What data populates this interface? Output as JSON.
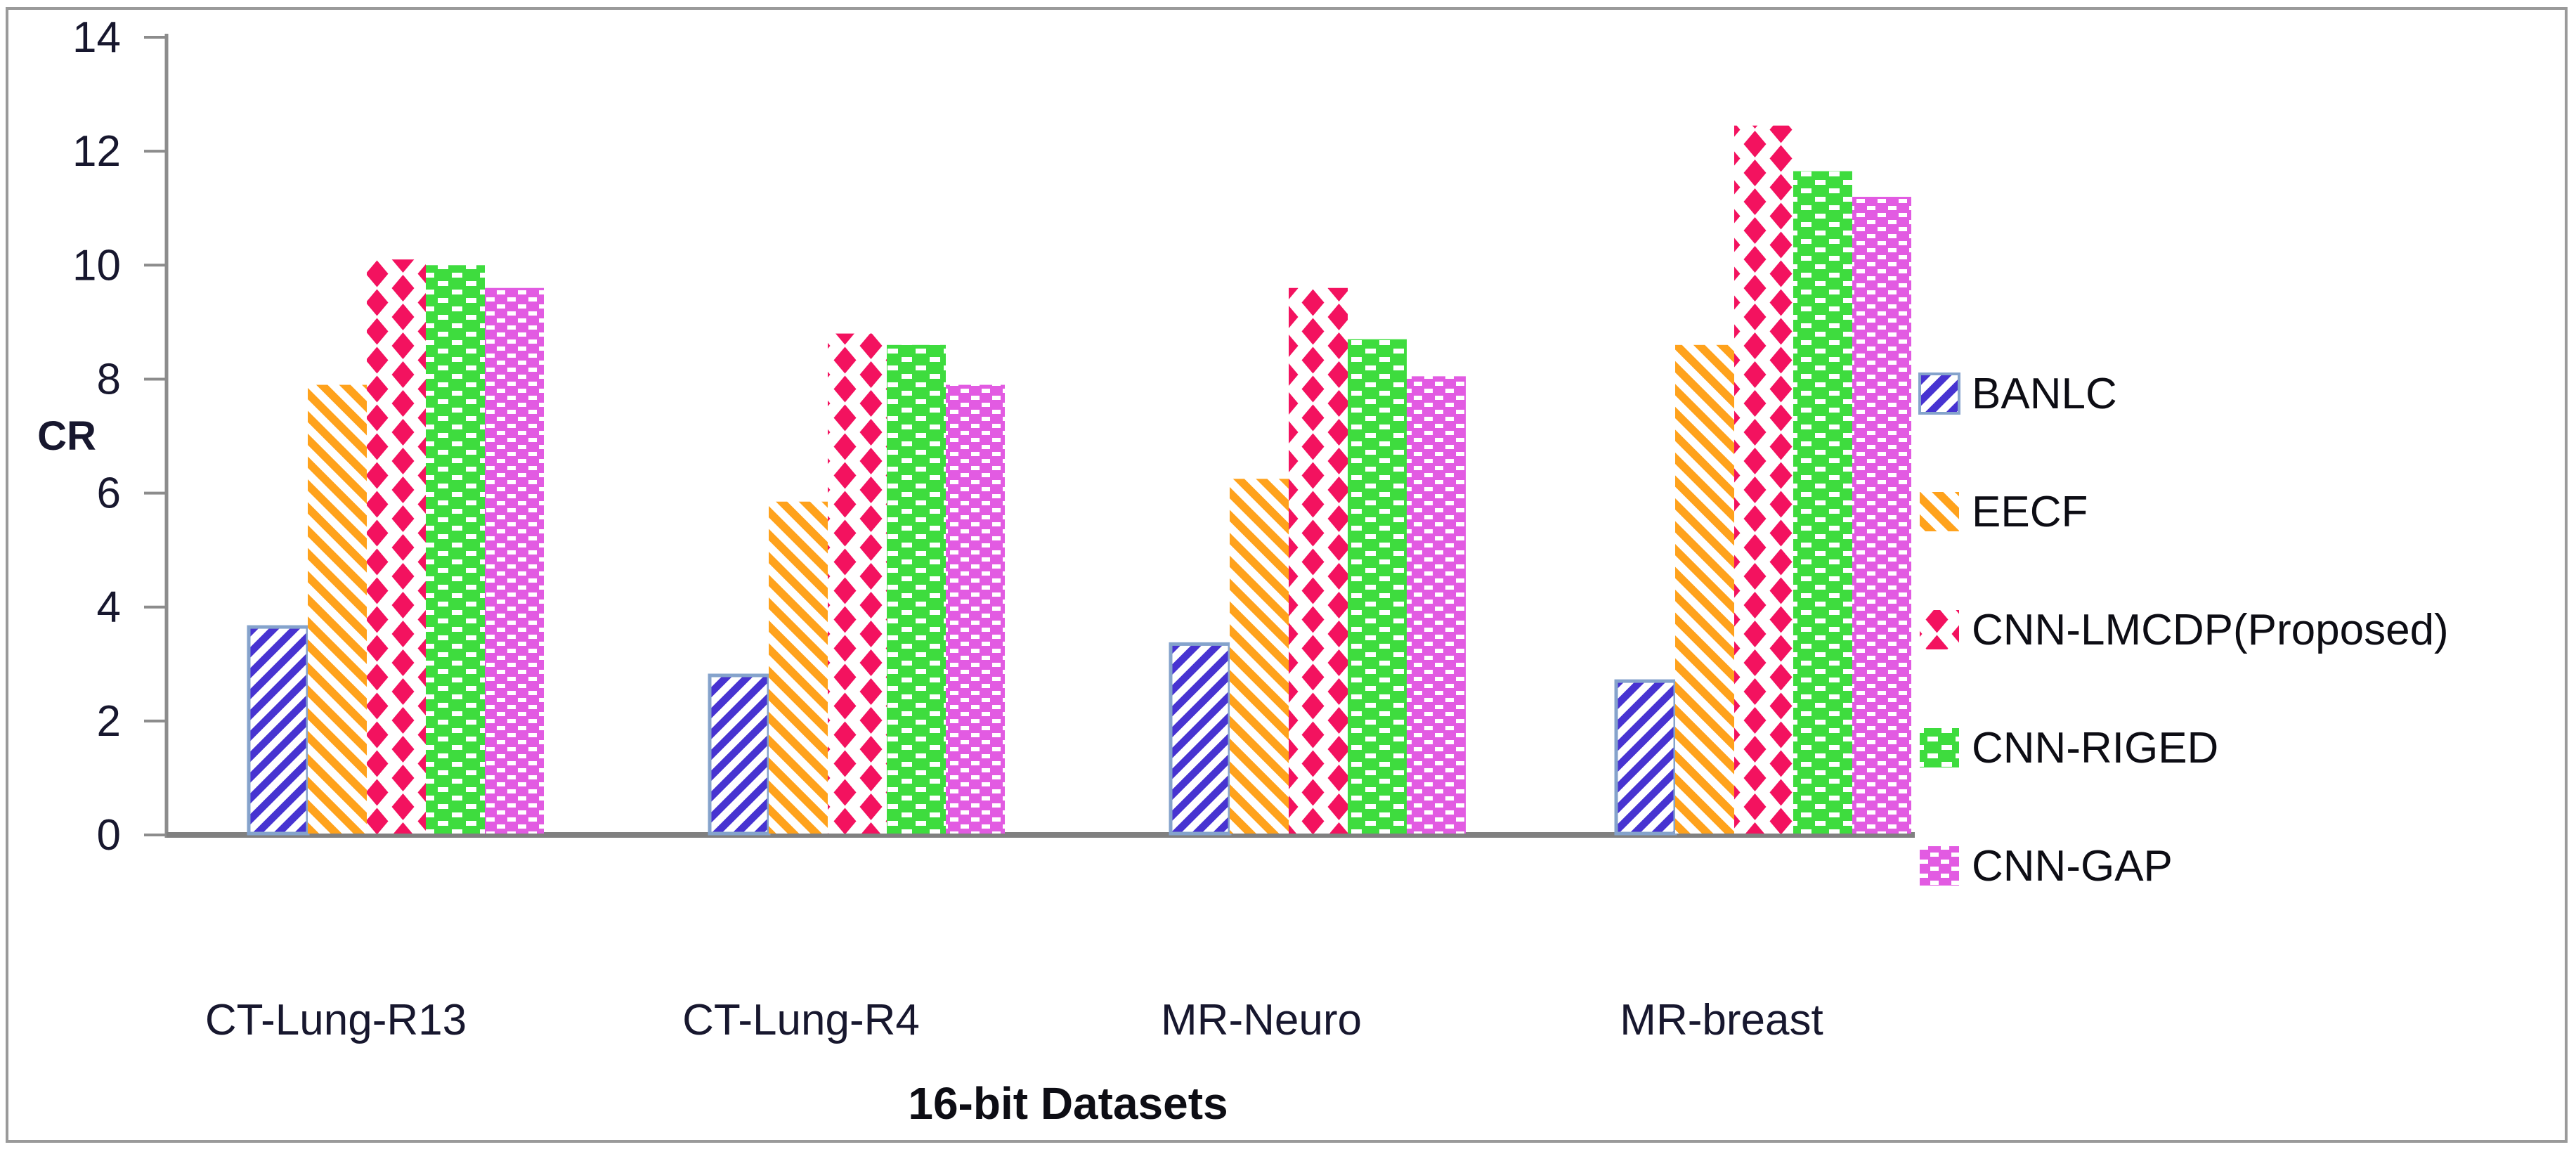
{
  "chart_data": {
    "type": "bar",
    "title": "",
    "xlabel": "16-bit Datasets",
    "ylabel": "CR",
    "ylim": [
      0,
      14
    ],
    "yticks": [
      0,
      2,
      4,
      6,
      8,
      10,
      12,
      14
    ],
    "grid": false,
    "legend_position": "right",
    "categories": [
      "CT-Lung-R13",
      "CT-Lung-R4",
      "MR-Neuro",
      "MR-breast"
    ],
    "series": [
      {
        "name": "BANLC",
        "color": "#4733D1",
        "edge_color": "#85A3CC",
        "pattern": "diagonal-up-stripes",
        "values": [
          3.65,
          2.8,
          3.35,
          2.7
        ]
      },
      {
        "name": "EECF",
        "color": "#FFA21C",
        "edge_color": null,
        "pattern": "diagonal-down-stripes",
        "values": [
          7.9,
          5.85,
          6.25,
          8.6
        ]
      },
      {
        "name": "CNN-LMCDP(Proposed)",
        "color": "#F3125F",
        "edge_color": null,
        "pattern": "diamond-lattice",
        "values": [
          10.1,
          8.8,
          9.6,
          12.45
        ]
      },
      {
        "name": "CNN-RIGED",
        "color": "#3EDC3E",
        "edge_color": null,
        "pattern": "white-dash-brick",
        "values": [
          10.0,
          8.6,
          8.7,
          11.65
        ]
      },
      {
        "name": "CNN-GAP",
        "color": "#E25BE2",
        "edge_color": null,
        "pattern": "white-dash-brick-small",
        "values": [
          9.6,
          7.9,
          8.05,
          11.2
        ]
      }
    ],
    "axis_color": "#8C8C8C",
    "baseline_color": "#808080",
    "frame_color": "#9A9A9A",
    "text_color": "#17172E"
  }
}
